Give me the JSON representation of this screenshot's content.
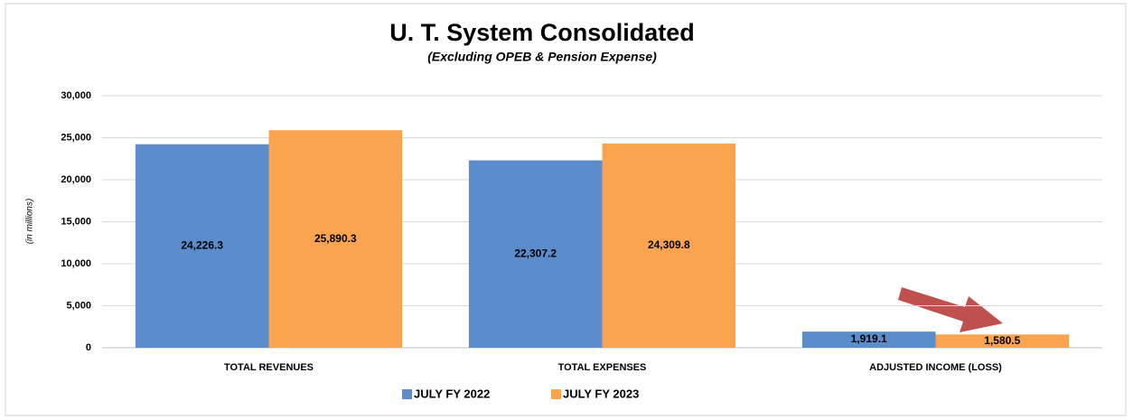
{
  "chart_data": {
    "type": "bar",
    "title": "U. T. System Consolidated",
    "subtitle": "(Excluding OPEB & Pension Expense)",
    "y_label": "(in millions)",
    "categories": [
      "TOTAL REVENUES",
      "TOTAL EXPENSES",
      "ADJUSTED INCOME (LOSS)"
    ],
    "series": [
      {
        "name": "JULY FY 2022",
        "color": "#5b8dcc",
        "values": [
          24226.3,
          22307.2,
          1919.1
        ],
        "value_labels": [
          "24,226.3",
          "22,307.2",
          "1,919.1"
        ]
      },
      {
        "name": "JULY FY 2023",
        "color": "#fba44f",
        "values": [
          25890.3,
          24309.8,
          1580.5
        ],
        "value_labels": [
          "25,890.3",
          "24,309.8",
          "1,580.5"
        ]
      }
    ],
    "ylim": [
      0,
      30000
    ],
    "yticks": [
      0,
      {
        "value": 5000,
        "label": "5,000"
      },
      {
        "value": 10000,
        "label": "10,000"
      },
      {
        "value": 15000,
        "label": "15,000"
      },
      {
        "value": 20000,
        "label": "20,000"
      },
      {
        "value": 25000,
        "label": "25,000"
      },
      {
        "value": 30000,
        "label": "30,000"
      }
    ],
    "grid": true,
    "legend": "bottom"
  }
}
